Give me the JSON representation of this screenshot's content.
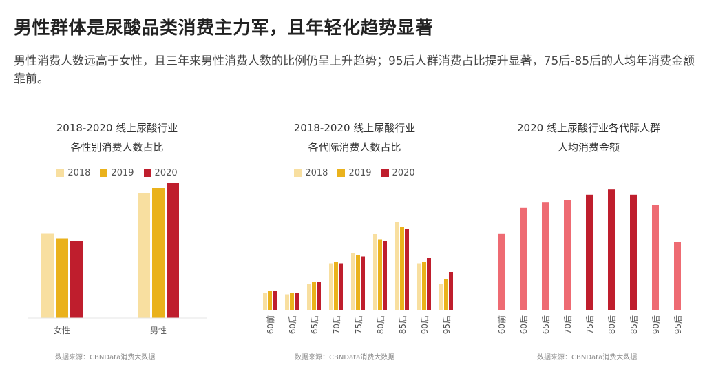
{
  "page": {
    "title": "男性群体是尿酸品类消费主力军，且年轻化趋势显著",
    "subtitle": "男性消费人数远高于女性，且三年来男性消费人数的比例仍呈上升趋势；95后人群消费占比提升显著，75后-85后的人均年消费金额靠前。"
  },
  "colors": {
    "y2018": "#f8dfa0",
    "y2019": "#eab21c",
    "y2020": "#bf1e2d",
    "pink": "#ee6b73",
    "crimson": "#bf1e2d"
  },
  "chart_data": [
    {
      "id": "gender",
      "type": "bar",
      "title_line1": "2018-2020 线上尿酸行业",
      "title_line2": "各性别消费人数占比",
      "legend": [
        "2018",
        "2019",
        "2020"
      ],
      "categories": [
        "女性",
        "男性"
      ],
      "series": [
        {
          "name": "2018",
          "values": [
            35,
            52
          ]
        },
        {
          "name": "2019",
          "values": [
            33,
            54
          ]
        },
        {
          "name": "2020",
          "values": [
            32,
            56
          ]
        }
      ],
      "ylim": [
        0,
        60
      ],
      "source": "数据来源：CBNData消费大数据"
    },
    {
      "id": "generation",
      "type": "bar",
      "title_line1": "2018-2020 线上尿酸行业",
      "title_line2": "各代际消费人数占比",
      "legend": [
        "2018",
        "2019",
        "2020"
      ],
      "categories": [
        "60前",
        "60后",
        "65后",
        "70后",
        "75后",
        "80后",
        "85后",
        "90后",
        "95后"
      ],
      "series": [
        {
          "name": "2018",
          "values": [
            5.0,
            4.5,
            7.5,
            13.5,
            16.5,
            22.0,
            25.5,
            13.5,
            7.5
          ]
        },
        {
          "name": "2019",
          "values": [
            5.5,
            5.0,
            8.0,
            14.0,
            16.0,
            20.5,
            24.0,
            14.0,
            9.0
          ]
        },
        {
          "name": "2020",
          "values": [
            5.5,
            5.0,
            8.0,
            13.5,
            15.5,
            20.0,
            23.5,
            15.0,
            11.0
          ]
        }
      ],
      "ylim": [
        0,
        32
      ],
      "source": "数据来源：CBNData消费大数据"
    },
    {
      "id": "spending",
      "type": "bar",
      "title_line1": "2020 线上尿酸行业各代际人群",
      "title_line2": "人均消费金额",
      "categories": [
        "60前",
        "60后",
        "65后",
        "70后",
        "75后",
        "80后",
        "85后",
        "90后",
        "95后"
      ],
      "values": [
        58,
        78,
        82,
        84,
        88,
        92,
        88,
        80,
        52
      ],
      "highlight": [
        "75后",
        "80后",
        "85后"
      ],
      "ylim": [
        0,
        100
      ],
      "source": "数据来源：CBNData消费大数据"
    }
  ]
}
